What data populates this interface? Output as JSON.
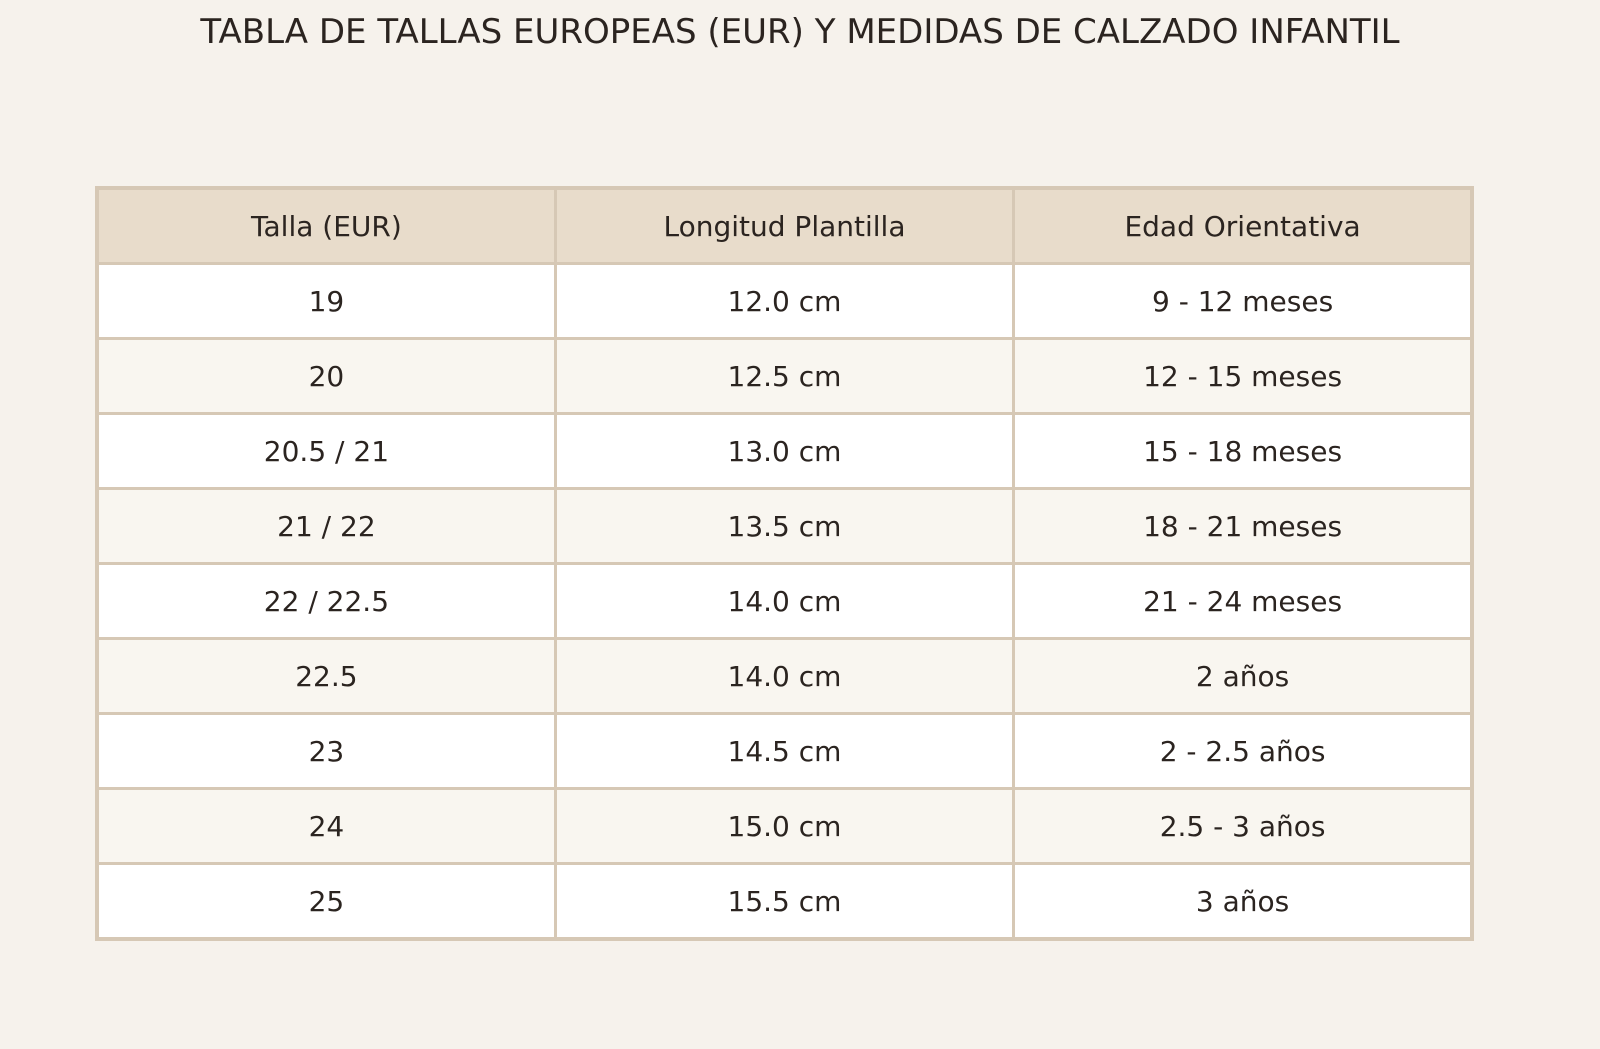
{
  "title": "TABLA DE TALLAS EUROPEAS (EUR) Y MEDIDAS DE CALZADO INFANTIL",
  "table": {
    "header": [
      "Talla (EUR)",
      "Longitud Plantilla",
      "Edad Orientativa"
    ],
    "rows": [
      [
        "19",
        "12.0 cm",
        "9 - 12 meses"
      ],
      [
        "20",
        "12.5 cm",
        "12 - 15 meses"
      ],
      [
        "20.5 / 21",
        "13.0 cm",
        "15 - 18 meses"
      ],
      [
        "21 / 22",
        "13.5 cm",
        "18 - 21 meses"
      ],
      [
        "22 / 22.5",
        "14.0 cm",
        "21 - 24 meses"
      ],
      [
        "22.5",
        "14.0 cm",
        "2 años"
      ],
      [
        "23",
        "14.5 cm",
        "2 - 2.5 años"
      ],
      [
        "24",
        "15.0 cm",
        "2.5 - 3 años"
      ],
      [
        "25",
        "15.5 cm",
        "3 años"
      ]
    ]
  }
}
